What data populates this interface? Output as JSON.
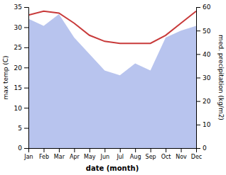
{
  "chart_data": {
    "type": "line",
    "categories": [
      "Jan",
      "Feb",
      "Mar",
      "Apr",
      "May",
      "Jun",
      "Jul",
      "Aug",
      "Sep",
      "Oct",
      "Nov",
      "Dec"
    ],
    "x_label": "date (month)",
    "y_label": "max temp (C)",
    "y2_label": "med. precipitation (kg/m2)",
    "series": [
      {
        "type": "area",
        "axis": "y2",
        "color": "#b8c4ee",
        "values": [
          55,
          52,
          57,
          47,
          40,
          33,
          31,
          36,
          33,
          47,
          50,
          52
        ]
      },
      {
        "type": "line",
        "color": "#c83a3a",
        "values": [
          33.0,
          34.0,
          33.5,
          31.0,
          28.0,
          26.5,
          26.0,
          26.0,
          26.0,
          28.0,
          31.0,
          34.0
        ]
      }
    ],
    "ylim": [
      0,
      35
    ],
    "yticks": [
      0,
      5,
      10,
      15,
      20,
      25,
      30,
      35
    ],
    "y2lim": [
      0,
      60
    ],
    "y2ticks": [
      0,
      10,
      20,
      30,
      40,
      50,
      60
    ]
  }
}
